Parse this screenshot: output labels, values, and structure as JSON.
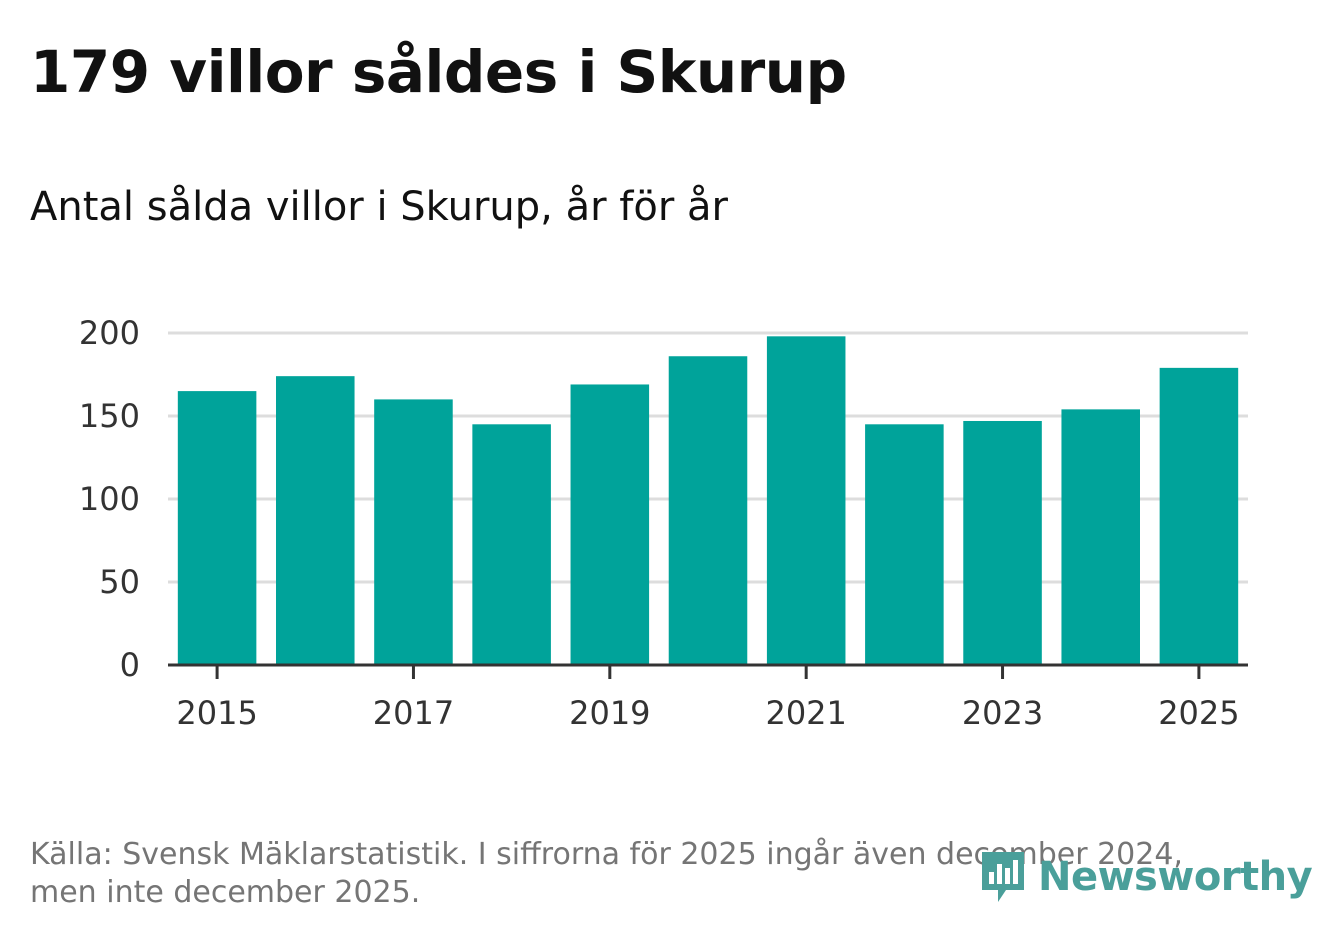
{
  "title": "179 villor såldes i Skurup",
  "subtitle": "Antal sålda villor i Skurup, år för år",
  "source": {
    "line1": "Källa: Svensk Mäklarstatistik. I siffrorna för 2025 ingår även december 2024,",
    "line2": "men inte december 2025."
  },
  "brand": {
    "name": "Newsworthy",
    "icon": "newsworthy-logo-icon"
  },
  "colors": {
    "bar": "#00a39a",
    "grid": "#dddddd",
    "axis": "#333333"
  },
  "chart_data": {
    "type": "bar",
    "title": "Antal sålda villor i Skurup, år för år",
    "xlabel": "",
    "ylabel": "",
    "categories": [
      "2015",
      "2016",
      "2017",
      "2018",
      "2019",
      "2020",
      "2021",
      "2022",
      "2023",
      "2024",
      "2025"
    ],
    "values": [
      165,
      174,
      160,
      145,
      169,
      186,
      198,
      145,
      147,
      154,
      179
    ],
    "ylim": [
      0,
      200
    ],
    "yticks": [
      0,
      50,
      100,
      150,
      200
    ],
    "xticks": [
      "2015",
      "2017",
      "2019",
      "2021",
      "2023",
      "2025"
    ],
    "grid": true,
    "legend": "none"
  }
}
